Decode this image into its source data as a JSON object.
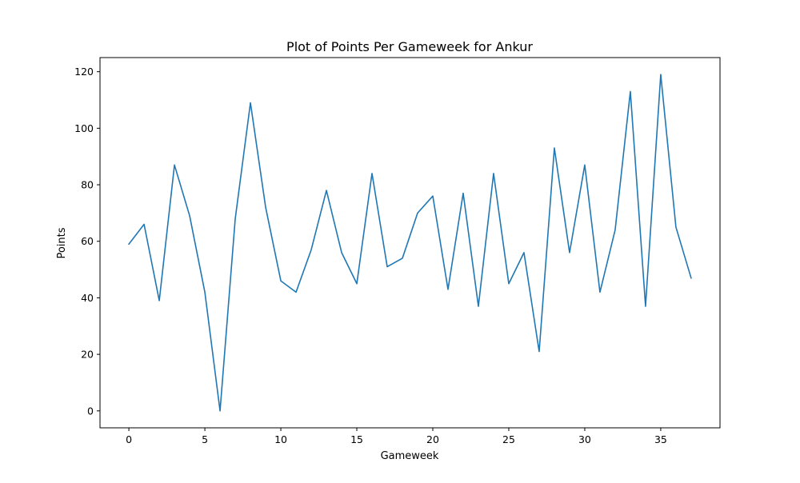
{
  "chart_data": {
    "type": "line",
    "title": "Plot of Points Per Gameweek for Ankur",
    "xlabel": "Gameweek",
    "ylabel": "Points",
    "xlim": [
      -1.9,
      38.9
    ],
    "ylim": [
      -6,
      125
    ],
    "xticks": [
      0,
      5,
      10,
      15,
      20,
      25,
      30,
      35
    ],
    "yticks": [
      0,
      20,
      40,
      60,
      80,
      100,
      120
    ],
    "grid": false,
    "series": [
      {
        "color": "#1f77b4",
        "x": [
          0,
          1,
          2,
          3,
          4,
          5,
          6,
          7,
          8,
          9,
          10,
          11,
          12,
          13,
          14,
          15,
          16,
          17,
          18,
          19,
          20,
          21,
          22,
          23,
          24,
          25,
          26,
          27,
          28,
          29,
          30,
          31,
          32,
          33,
          34,
          35,
          36,
          37
        ],
        "values": [
          59,
          66,
          39,
          87,
          69,
          42,
          0,
          68,
          109,
          72,
          46,
          42,
          57,
          78,
          56,
          45,
          84,
          51,
          54,
          70,
          76,
          43,
          77,
          37,
          84,
          45,
          56,
          21,
          93,
          56,
          87,
          42,
          64,
          113,
          37,
          119,
          65,
          47
        ]
      }
    ]
  }
}
